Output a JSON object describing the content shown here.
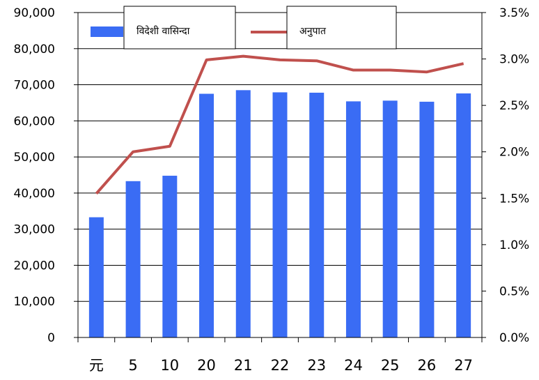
{
  "chart_data": {
    "type": "bar",
    "title": "",
    "xlabel": "",
    "ylabel": "",
    "y2label": "",
    "categories": [
      "元",
      "5",
      "10",
      "20",
      "21",
      "22",
      "23",
      "24",
      "25",
      "26",
      "27"
    ],
    "series": [
      {
        "name": "विदेशी वासिन्दा",
        "type": "bar",
        "axis": "left",
        "color": "#3a6cf4",
        "values": [
          33300,
          43300,
          44800,
          67500,
          68500,
          67900,
          67800,
          65400,
          65600,
          65300,
          67600
        ]
      },
      {
        "name": "अनुपात",
        "type": "line",
        "axis": "right",
        "color": "#c0504d",
        "values": [
          1.55,
          2.0,
          2.06,
          2.99,
          3.03,
          2.99,
          2.98,
          2.88,
          2.88,
          2.86,
          2.95
        ]
      }
    ],
    "ylim": [
      0,
      90000
    ],
    "y_ticks": [
      "0",
      "10,000",
      "20,000",
      "30,000",
      "40,000",
      "50,000",
      "60,000",
      "70,000",
      "80,000",
      "90,000"
    ],
    "y2lim": [
      0,
      3.5
    ],
    "y2_ticks": [
      "0.0%",
      "0.5%",
      "1.0%",
      "1.5%",
      "2.0%",
      "2.5%",
      "3.0%",
      "3.5%"
    ],
    "grid": true,
    "legend_position": "top"
  }
}
